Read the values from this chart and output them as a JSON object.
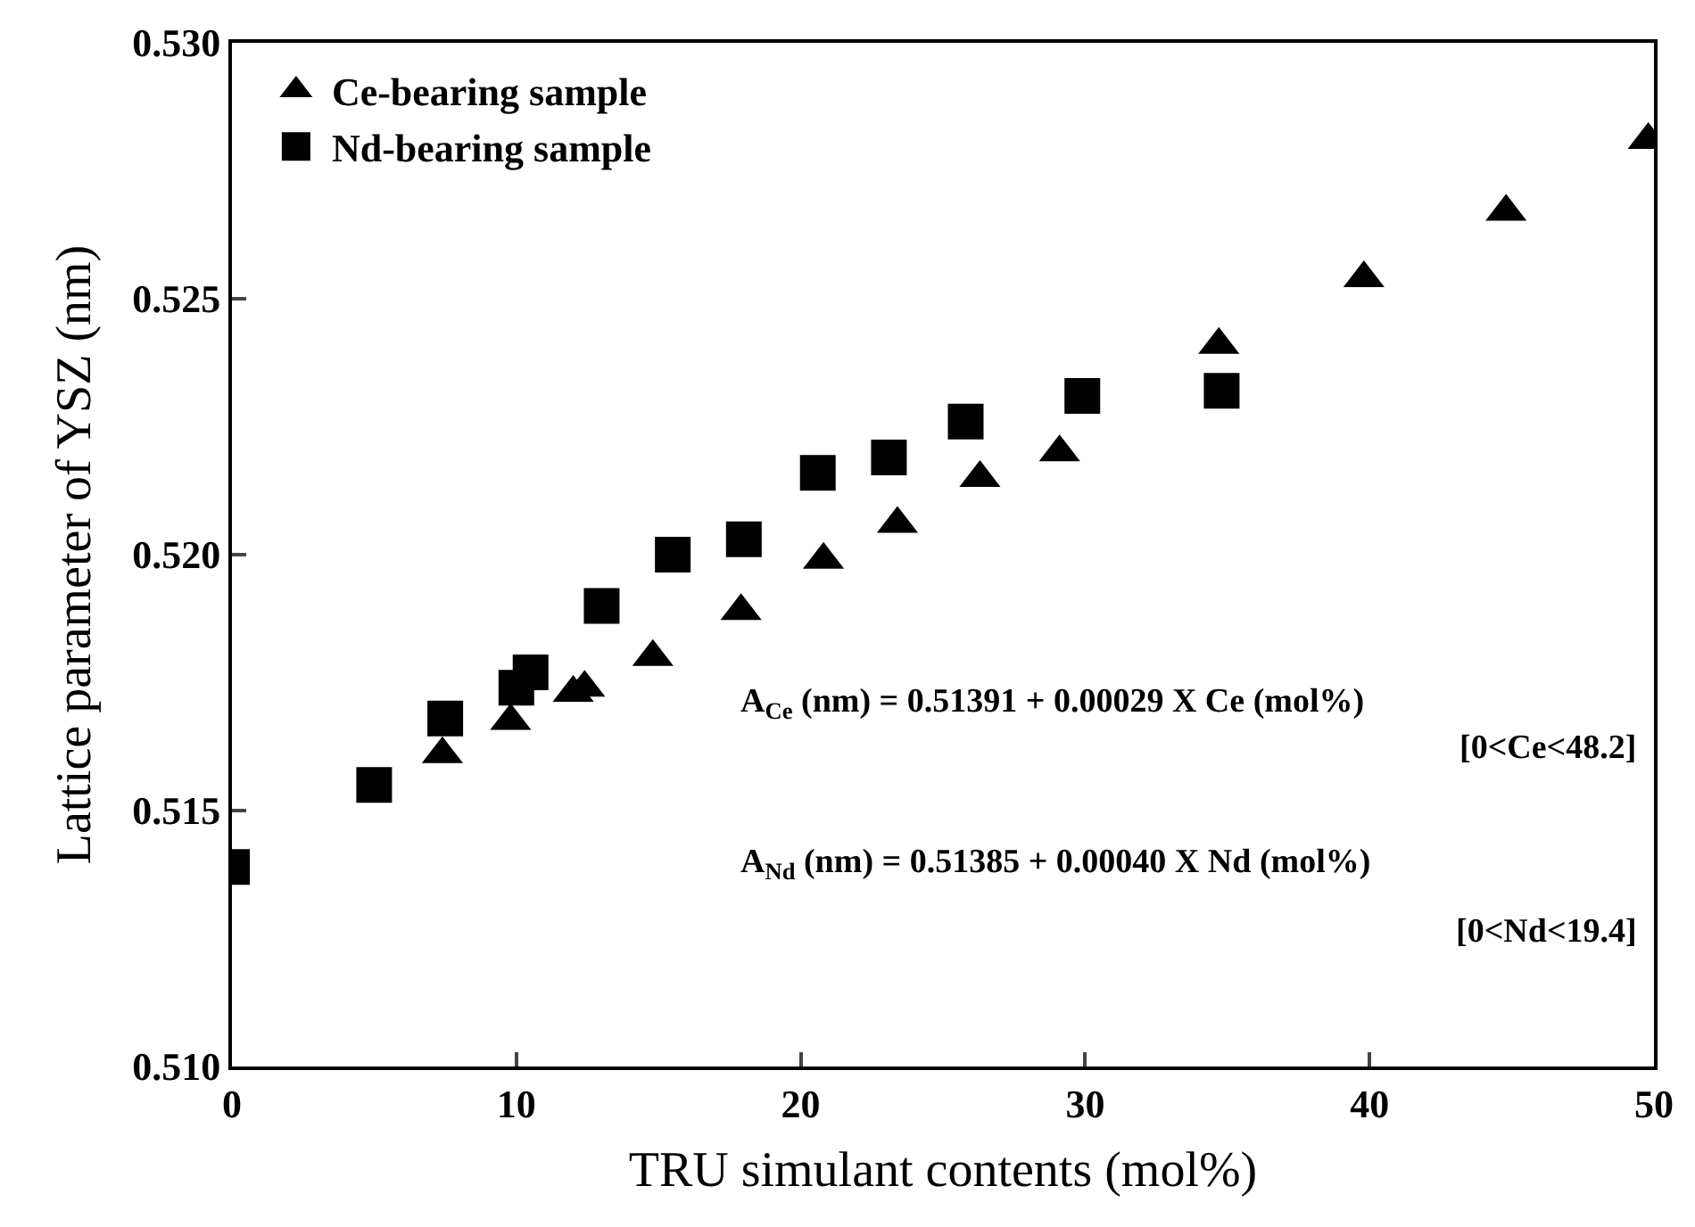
{
  "chart_data": {
    "type": "scatter",
    "xlabel": "TRU simulant contents (mol%)",
    "ylabel": "Lattice parameter of YSZ (nm)",
    "xlim": [
      0,
      50
    ],
    "xticks": [
      0,
      10,
      20,
      30,
      40,
      50
    ],
    "ylim": [
      0.51,
      0.53
    ],
    "yticks": [
      {
        "value": 0.51,
        "label": "0.510"
      },
      {
        "value": 0.515,
        "label": "0.515"
      },
      {
        "value": 0.52,
        "label": "0.520"
      },
      {
        "value": 0.525,
        "label": "0.525"
      },
      {
        "value": 0.53,
        "label": "0.530"
      }
    ],
    "legend": "top left",
    "series": [
      {
        "name": "Ce-bearing sample",
        "color": "#000000",
        "marker": "triangle",
        "x": [
          7.4,
          9.8,
          12.0,
          12.4,
          14.8,
          17.9,
          20.8,
          23.4,
          26.3,
          29.1,
          34.7,
          39.8,
          44.8,
          49.8
        ],
        "values": [
          0.5161,
          0.51675,
          0.5173,
          0.5174,
          0.518,
          0.5189,
          0.5199,
          0.5206,
          0.5215,
          0.522,
          0.5241,
          0.5254,
          0.5267,
          0.5281
        ]
      },
      {
        "name": "Nd-bearing sample",
        "color": "#000000",
        "marker": "square",
        "x": [
          0,
          5.0,
          7.5,
          10.0,
          10.5,
          13.0,
          15.5,
          18.0,
          20.6,
          23.1,
          25.8,
          29.9,
          34.8
        ],
        "values": [
          0.5139,
          0.5155,
          0.5168,
          0.5174,
          0.5177,
          0.519,
          0.52,
          0.5203,
          0.5216,
          0.5219,
          0.5226,
          0.5231,
          0.5232
        ]
      }
    ],
    "annotations": [
      "A$_{Ce}$ (nm) = 0.51391 + 0.00029 X Ce (mol%)",
      "[0<Ce<48.2]",
      "A$_{Nd}$ (nm) = 0.51385 + 0.00040 X Nd (mol%)",
      "[0<Nd<19.4]"
    ]
  }
}
